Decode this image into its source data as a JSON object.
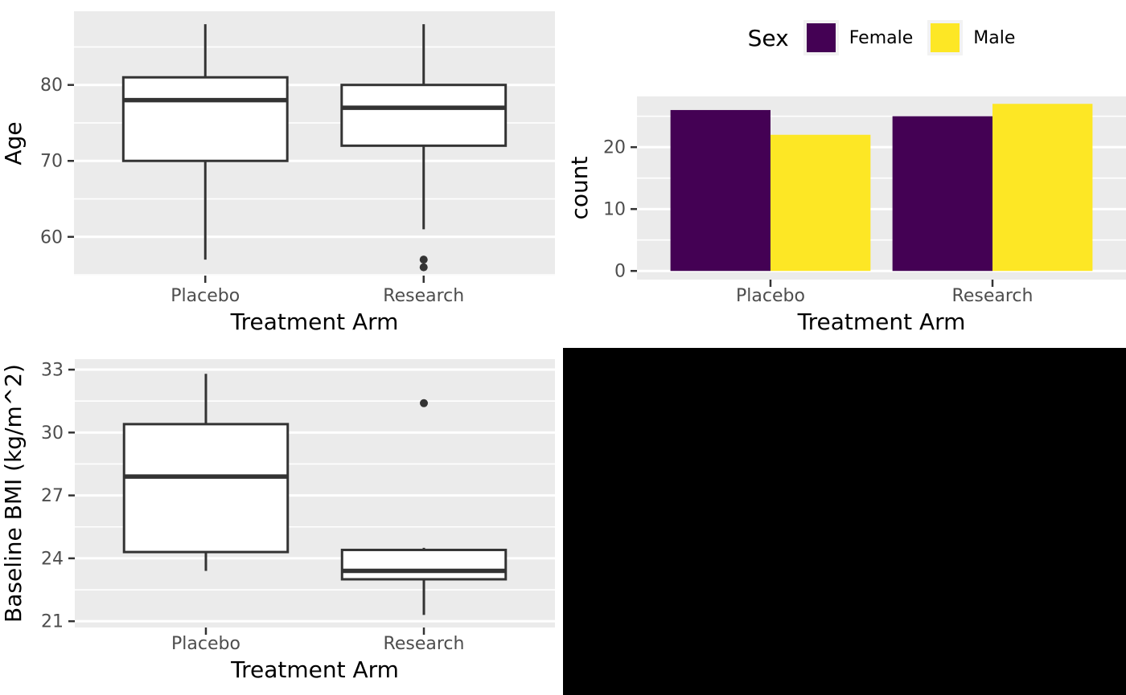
{
  "colors": {
    "panel_bg": "#EBEBEB",
    "grid_major": "#FFFFFF",
    "grid_minor": "#FFFFFF",
    "axis_text": "#4D4D4D",
    "axis_title": "#000000",
    "box_stroke": "#333333",
    "box_fill": "#FFFFFF",
    "outlier": "#333333",
    "tick_mark": "#333333",
    "female": "#440154",
    "male": "#FDE725",
    "empty_panel": "#000000"
  },
  "chart_data": [
    {
      "id": "age",
      "type": "boxplot",
      "title": "",
      "xlabel": "Treatment Arm",
      "ylabel": "Age",
      "categories": [
        "Placebo",
        "Research"
      ],
      "yticks": [
        60,
        70,
        80
      ],
      "yticks_minor": [
        55,
        65,
        75,
        85
      ],
      "ylim": [
        54.9,
        89.7
      ],
      "grid": true,
      "boxes": [
        {
          "category": "Placebo",
          "whisker_low": 57,
          "q1": 70,
          "median": 78,
          "q3": 81,
          "whisker_high": 88,
          "outliers": []
        },
        {
          "category": "Research",
          "whisker_low": 61,
          "q1": 72,
          "median": 77,
          "q3": 80,
          "whisker_high": 88,
          "outliers": [
            57,
            56
          ]
        }
      ]
    },
    {
      "id": "sex",
      "type": "bar",
      "title": "",
      "xlabel": "Treatment Arm",
      "ylabel": "count",
      "categories": [
        "Placebo",
        "Research"
      ],
      "yticks": [
        0,
        10,
        20
      ],
      "yticks_minor": [
        5,
        15,
        25
      ],
      "ylim": [
        -1.4,
        28.2
      ],
      "grid": true,
      "legend": {
        "title": "Sex",
        "position": "top",
        "entries": [
          {
            "label": "Female",
            "color": "#440154"
          },
          {
            "label": "Male",
            "color": "#FDE725"
          }
        ]
      },
      "series": [
        {
          "name": "Female",
          "color": "#440154",
          "values": [
            26,
            25
          ]
        },
        {
          "name": "Male",
          "color": "#FDE725",
          "values": [
            22,
            27
          ]
        }
      ]
    },
    {
      "id": "bmi",
      "type": "boxplot",
      "title": "",
      "xlabel": "Treatment Arm",
      "ylabel": "Baseline BMI (kg/m^2)",
      "categories": [
        "Placebo",
        "Research"
      ],
      "yticks": [
        21,
        24,
        27,
        30,
        33
      ],
      "yticks_minor": [
        22.5,
        25.5,
        28.5,
        31.5
      ],
      "ylim": [
        20.7,
        33.5
      ],
      "grid": true,
      "boxes": [
        {
          "category": "Placebo",
          "whisker_low": 23.4,
          "q1": 24.3,
          "median": 27.9,
          "q3": 30.4,
          "whisker_high": 32.8,
          "outliers": []
        },
        {
          "category": "Research",
          "whisker_low": 21.3,
          "q1": 23.0,
          "median": 23.4,
          "q3": 24.4,
          "whisker_high": 24.5,
          "outliers": [
            31.4
          ]
        }
      ]
    }
  ]
}
